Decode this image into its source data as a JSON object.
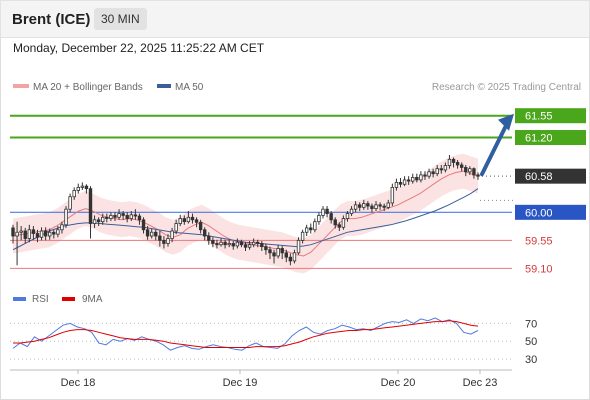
{
  "header": {
    "title": "Brent (ICE)",
    "timeframe": "30 MIN"
  },
  "datetime": "Monday, December 22, 2025 11:25:22 AM CET",
  "legend": {
    "ma20_label": "MA 20 + Bollinger Bands",
    "ma50_label": "MA 50",
    "credit": "Research © 2025 Trading Central"
  },
  "rsi_legend": {
    "rsi_label": "RSI",
    "ma_label": "9MA"
  },
  "colors": {
    "resistance": "#4aa61b",
    "support": "#e8797b",
    "pivot": "#4f7be0",
    "ma50": "#3a5f9b",
    "ma20": "#e8797b",
    "bollinger_fill": "#fcdede",
    "arrow": "#2f5fa0",
    "price_badge": "#333333",
    "candle_up": "#ffffff",
    "candle_down": "#333333"
  },
  "chart_data": [
    {
      "type": "candlestick",
      "title": "Brent (ICE) 30 MIN",
      "x_labels": [
        "Dec 18",
        "Dec 19",
        "Dec 20",
        "Dec 23"
      ],
      "ylim": [
        58.85,
        61.85
      ],
      "levels": [
        {
          "label": "61.55",
          "value": 61.55,
          "kind": "resistance"
        },
        {
          "label": "61.20",
          "value": 61.2,
          "kind": "resistance"
        },
        {
          "label": "60.58",
          "value": 60.58,
          "kind": "last_price"
        },
        {
          "label": "60.00",
          "value": 60.0,
          "kind": "pivot"
        },
        {
          "label": "59.55",
          "value": 59.55,
          "kind": "support"
        },
        {
          "label": "59.10",
          "value": 59.1,
          "kind": "support"
        }
      ],
      "arrow": {
        "from": 60.58,
        "to": 61.55,
        "direction": "up"
      },
      "candles": [
        [
          59.75,
          59.62,
          59.8,
          59.5
        ],
        [
          59.62,
          59.68,
          59.85,
          59.15
        ],
        [
          59.68,
          59.7,
          59.78,
          59.55
        ],
        [
          59.7,
          59.58,
          59.75,
          59.5
        ],
        [
          59.58,
          59.72,
          59.8,
          59.52
        ],
        [
          59.72,
          59.66,
          59.78,
          59.56
        ],
        [
          59.66,
          59.6,
          59.72,
          59.52
        ],
        [
          59.6,
          59.7,
          59.76,
          59.55
        ],
        [
          59.7,
          59.62,
          59.76,
          59.55
        ],
        [
          59.62,
          59.68,
          59.74,
          59.56
        ],
        [
          59.68,
          59.65,
          59.72,
          59.58
        ],
        [
          59.65,
          59.72,
          59.78,
          59.6
        ],
        [
          59.72,
          59.8,
          59.85,
          59.66
        ],
        [
          59.8,
          60.05,
          60.1,
          59.75
        ],
        [
          60.05,
          60.25,
          60.3,
          60.0
        ],
        [
          60.25,
          60.35,
          60.4,
          60.2
        ],
        [
          60.35,
          60.4,
          60.46,
          60.3
        ],
        [
          60.4,
          60.42,
          60.48,
          60.36
        ],
        [
          60.42,
          60.38,
          60.45,
          60.3
        ],
        [
          60.38,
          59.82,
          60.42,
          59.58
        ],
        [
          59.82,
          59.88,
          59.95,
          59.75
        ],
        [
          59.88,
          59.85,
          59.92,
          59.78
        ],
        [
          59.85,
          59.92,
          59.98,
          59.8
        ],
        [
          59.92,
          59.9,
          59.98,
          59.84
        ],
        [
          59.9,
          59.95,
          60.0,
          59.86
        ],
        [
          59.95,
          59.92,
          60.0,
          59.86
        ],
        [
          59.92,
          59.98,
          60.05,
          59.88
        ],
        [
          59.98,
          59.95,
          60.02,
          59.88
        ],
        [
          59.95,
          59.9,
          60.0,
          59.84
        ],
        [
          59.9,
          59.96,
          60.02,
          59.86
        ],
        [
          59.96,
          59.94,
          60.05,
          59.88
        ],
        [
          59.94,
          59.88,
          59.98,
          59.8
        ],
        [
          59.88,
          59.72,
          59.92,
          59.66
        ],
        [
          59.72,
          59.62,
          59.78,
          59.56
        ],
        [
          59.62,
          59.68,
          59.74,
          59.58
        ],
        [
          59.68,
          59.62,
          59.72,
          59.55
        ],
        [
          59.62,
          59.55,
          59.7,
          59.45
        ],
        [
          59.55,
          59.5,
          59.62,
          59.42
        ],
        [
          59.5,
          59.58,
          59.65,
          59.45
        ],
        [
          59.58,
          59.7,
          59.75,
          59.52
        ],
        [
          59.7,
          59.82,
          59.88,
          59.65
        ],
        [
          59.82,
          59.9,
          59.96,
          59.78
        ],
        [
          59.9,
          59.85,
          59.95,
          59.8
        ],
        [
          59.85,
          59.92,
          60.02,
          59.82
        ],
        [
          59.92,
          59.88,
          59.98,
          59.82
        ],
        [
          59.88,
          59.84,
          59.92,
          59.76
        ],
        [
          59.84,
          59.72,
          59.88,
          59.66
        ],
        [
          59.72,
          59.62,
          59.76,
          59.55
        ],
        [
          59.62,
          59.55,
          59.68,
          59.48
        ],
        [
          59.55,
          59.5,
          59.6,
          59.44
        ],
        [
          59.5,
          59.48,
          59.56,
          59.42
        ],
        [
          59.48,
          59.52,
          59.58,
          59.45
        ],
        [
          59.52,
          59.48,
          59.56,
          59.42
        ],
        [
          59.48,
          59.5,
          59.56,
          59.44
        ],
        [
          59.5,
          59.46,
          59.54,
          59.4
        ],
        [
          59.46,
          59.52,
          59.58,
          59.42
        ],
        [
          59.52,
          59.48,
          59.56,
          59.44
        ],
        [
          59.48,
          59.44,
          59.52,
          59.38
        ],
        [
          59.44,
          59.48,
          59.54,
          59.4
        ],
        [
          59.48,
          59.52,
          59.58,
          59.44
        ],
        [
          59.52,
          59.5,
          59.56,
          59.44
        ],
        [
          59.5,
          59.45,
          59.54,
          59.38
        ],
        [
          59.45,
          59.4,
          59.5,
          59.32
        ],
        [
          59.4,
          59.35,
          59.45,
          59.25
        ],
        [
          59.35,
          59.3,
          59.4,
          59.18
        ],
        [
          59.3,
          59.42,
          59.48,
          59.26
        ],
        [
          59.42,
          59.35,
          59.46,
          59.25
        ],
        [
          59.35,
          59.28,
          59.4,
          59.2
        ],
        [
          59.28,
          59.22,
          59.34,
          59.15
        ],
        [
          59.22,
          59.35,
          59.4,
          59.18
        ],
        [
          59.35,
          59.55,
          59.6,
          59.32
        ],
        [
          59.55,
          59.68,
          59.72,
          59.5
        ],
        [
          59.68,
          59.75,
          59.8,
          59.62
        ],
        [
          59.75,
          59.72,
          59.82,
          59.66
        ],
        [
          59.72,
          59.85,
          59.9,
          59.68
        ],
        [
          59.85,
          59.95,
          60.0,
          59.8
        ],
        [
          59.95,
          60.05,
          60.1,
          59.9
        ],
        [
          60.05,
          59.98,
          60.1,
          59.92
        ],
        [
          59.98,
          59.88,
          60.02,
          59.82
        ],
        [
          59.88,
          59.8,
          59.92,
          59.74
        ],
        [
          59.8,
          59.76,
          59.84,
          59.7
        ],
        [
          59.76,
          59.9,
          59.95,
          59.72
        ],
        [
          59.9,
          59.98,
          60.02,
          59.85
        ],
        [
          59.98,
          60.05,
          60.1,
          59.94
        ],
        [
          60.05,
          60.12,
          60.18,
          60.0
        ],
        [
          60.12,
          60.08,
          60.16,
          60.02
        ],
        [
          60.08,
          60.14,
          60.2,
          60.04
        ],
        [
          60.14,
          60.1,
          60.18,
          60.04
        ],
        [
          60.1,
          60.06,
          60.14,
          60.0
        ],
        [
          60.06,
          60.12,
          60.18,
          60.02
        ],
        [
          60.12,
          60.1,
          60.16,
          60.04
        ],
        [
          60.1,
          60.08,
          60.14,
          60.02
        ],
        [
          60.08,
          60.15,
          60.2,
          60.05
        ],
        [
          60.15,
          60.4,
          60.46,
          60.1
        ],
        [
          60.4,
          60.48,
          60.54,
          60.35
        ],
        [
          60.48,
          60.45,
          60.55,
          60.4
        ],
        [
          60.45,
          60.52,
          60.58,
          60.42
        ],
        [
          60.52,
          60.5,
          60.58,
          60.44
        ],
        [
          60.5,
          60.56,
          60.62,
          60.46
        ],
        [
          60.56,
          60.52,
          60.62,
          60.48
        ],
        [
          60.52,
          60.6,
          60.66,
          60.48
        ],
        [
          60.6,
          60.58,
          60.66,
          60.52
        ],
        [
          60.58,
          60.65,
          60.7,
          60.54
        ],
        [
          60.65,
          60.62,
          60.7,
          60.56
        ],
        [
          60.62,
          60.7,
          60.76,
          60.58
        ],
        [
          60.7,
          60.68,
          60.76,
          60.62
        ],
        [
          60.68,
          60.75,
          60.8,
          60.64
        ],
        [
          60.75,
          60.85,
          60.92,
          60.7
        ],
        [
          60.85,
          60.8,
          60.88,
          60.72
        ],
        [
          60.8,
          60.76,
          60.84,
          60.7
        ],
        [
          60.76,
          60.72,
          60.8,
          60.66
        ],
        [
          60.72,
          60.65,
          60.76,
          60.58
        ],
        [
          60.65,
          60.7,
          60.74,
          60.6
        ],
        [
          60.7,
          60.6,
          60.72,
          60.54
        ],
        [
          60.6,
          60.58,
          60.64,
          60.52
        ]
      ],
      "ma20": [
        59.62,
        59.64,
        59.66,
        59.68,
        59.7,
        59.72,
        59.78,
        59.86,
        59.94,
        60.02,
        60.06,
        60.02,
        59.96,
        59.92,
        59.9,
        59.88,
        59.9,
        59.88,
        59.84,
        59.78,
        59.72,
        59.64,
        59.6,
        59.64,
        59.74,
        59.8,
        59.84,
        59.78,
        59.7,
        59.62,
        59.56,
        59.52,
        59.5,
        59.48,
        59.46,
        59.44,
        59.42,
        59.4,
        59.36,
        59.32,
        59.3,
        59.36,
        59.48,
        59.6,
        59.72,
        59.84,
        59.9,
        59.9,
        59.92,
        59.96,
        60.0,
        60.04,
        60.08,
        60.12,
        60.18,
        60.24,
        60.3,
        60.38,
        60.46,
        60.54,
        60.6,
        60.64,
        60.66,
        60.62,
        60.58
      ],
      "ma50": [
        59.4,
        59.46,
        59.52,
        59.58,
        59.64,
        59.7,
        59.74,
        59.78,
        59.8,
        59.82,
        59.83,
        59.83,
        59.82,
        59.81,
        59.8,
        59.79,
        59.78,
        59.77,
        59.76,
        59.74,
        59.72,
        59.7,
        59.68,
        59.67,
        59.66,
        59.65,
        59.64,
        59.62,
        59.6,
        59.58,
        59.56,
        59.54,
        59.52,
        59.51,
        59.5,
        59.49,
        59.48,
        59.47,
        59.46,
        59.45,
        59.46,
        59.48,
        59.52,
        59.56,
        59.6,
        59.64,
        59.68,
        59.7,
        59.72,
        59.74,
        59.76,
        59.78,
        59.8,
        59.83,
        59.86,
        59.9,
        59.94,
        59.98,
        60.02,
        60.07,
        60.12,
        60.18,
        60.24,
        60.3,
        60.38
      ]
    },
    {
      "type": "line",
      "title": "RSI",
      "y_ticks": [
        70,
        50,
        30
      ],
      "ylim": [
        20,
        85
      ],
      "series": [
        {
          "name": "RSI",
          "values": [
            42,
            48,
            44,
            55,
            50,
            56,
            62,
            68,
            70,
            66,
            64,
            60,
            48,
            46,
            52,
            50,
            53,
            51,
            55,
            52,
            50,
            46,
            40,
            43,
            45,
            42,
            41,
            44,
            46,
            44,
            43,
            41,
            40,
            45,
            48,
            44,
            43,
            42,
            47,
            56,
            62,
            66,
            60,
            58,
            62,
            64,
            68,
            66,
            63,
            64,
            62,
            66,
            70,
            72,
            71,
            74,
            70,
            75,
            73,
            76,
            72,
            74,
            70,
            60,
            58,
            62
          ]
        },
        {
          "name": "9MA",
          "values": [
            48,
            48,
            49,
            50,
            52,
            54,
            57,
            60,
            62,
            63,
            63,
            62,
            60,
            58,
            56,
            54,
            53,
            52,
            52,
            52,
            51,
            50,
            48,
            47,
            46,
            45,
            44,
            43,
            43,
            43,
            43,
            43,
            43,
            43,
            44,
            44,
            44,
            44,
            45,
            47,
            49,
            52,
            55,
            57,
            59,
            60,
            61,
            62,
            62,
            63,
            63,
            64,
            65,
            66,
            67,
            68,
            69,
            70,
            71,
            72,
            72,
            73,
            72,
            70,
            68,
            67
          ]
        }
      ]
    }
  ]
}
